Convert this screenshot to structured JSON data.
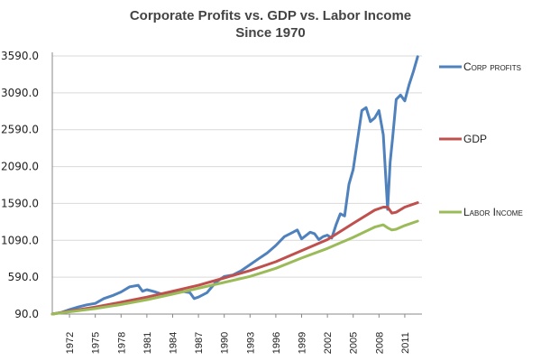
{
  "chart_data": {
    "type": "line",
    "title": "Corporate Profits vs. GDP vs. Labor Income",
    "subtitle": "Since 1970",
    "xlabel": "",
    "ylabel": "",
    "y_ticks": [
      "90.0",
      "590.0",
      "1090.0",
      "1590.0",
      "2090.0",
      "2590.0",
      "3090.0",
      "3590.0"
    ],
    "y_tick_values": [
      90,
      590,
      1090,
      1590,
      2090,
      2590,
      3090,
      3590
    ],
    "ylim": [
      90,
      3590
    ],
    "x_ticks": [
      "1972",
      "1975",
      "1978",
      "1981",
      "1984",
      "1987",
      "1990",
      "1993",
      "1996",
      "1999",
      "2002",
      "2005",
      "2008",
      "2011"
    ],
    "x_tick_values": [
      1972,
      1975,
      1978,
      1981,
      1984,
      1987,
      1990,
      1993,
      1996,
      1999,
      2002,
      2005,
      2008,
      2011
    ],
    "xlim": [
      1970,
      2013
    ],
    "grid": "horizontal",
    "legend_position": "right",
    "series": [
      {
        "name": "Corp profits",
        "color": "#4f81bd",
        "x": [
          1970,
          1971,
          1972,
          1973,
          1974,
          1975,
          1976,
          1977,
          1978,
          1979,
          1980,
          1980.5,
          1981,
          1982,
          1983,
          1984,
          1985,
          1986,
          1986.5,
          1987,
          1988,
          1989,
          1990,
          1991,
          1992,
          1993,
          1994,
          1995,
          1996,
          1997,
          1998,
          1998.5,
          1999,
          2000,
          2000.5,
          2001,
          2001.5,
          2002,
          2002.5,
          2003,
          2003.5,
          2004,
          2004.5,
          2005,
          2005.5,
          2006,
          2006.5,
          2007,
          2007.5,
          2008,
          2008.5,
          2009,
          2009.3,
          2009.6,
          2010,
          2010.5,
          2011,
          2011.5,
          2012,
          2012.5
        ],
        "values": [
          90,
          110,
          150,
          185,
          215,
          235,
          300,
          340,
          390,
          460,
          480,
          400,
          420,
          390,
          350,
          390,
          400,
          380,
          300,
          320,
          380,
          520,
          600,
          620,
          680,
          760,
          840,
          920,
          1020,
          1140,
          1200,
          1230,
          1110,
          1200,
          1180,
          1100,
          1140,
          1160,
          1120,
          1300,
          1450,
          1420,
          1850,
          2050,
          2450,
          2850,
          2890,
          2700,
          2750,
          2850,
          2520,
          1510,
          2150,
          2500,
          3000,
          3060,
          2980,
          3200,
          3380,
          3580
        ]
      },
      {
        "name": "GDP",
        "color": "#c0504d",
        "x": [
          1970,
          1972,
          1975,
          1978,
          1981,
          1984,
          1987,
          1990,
          1993,
          1996,
          1999,
          2002,
          2005,
          2007.5,
          2008.5,
          2009,
          2009.5,
          2010,
          2011,
          2012.5
        ],
        "values": [
          90,
          130,
          185,
          250,
          320,
          400,
          480,
          580,
          680,
          800,
          950,
          1100,
          1320,
          1500,
          1540,
          1540,
          1460,
          1470,
          1540,
          1600
        ]
      },
      {
        "name": "Labor Income",
        "color": "#9bbb59",
        "x": [
          1970,
          1972,
          1975,
          1978,
          1981,
          1984,
          1987,
          1990,
          1993,
          1996,
          1999,
          2002,
          2005,
          2007.5,
          2008.5,
          2009,
          2009.5,
          2010,
          2011,
          2012.5
        ],
        "values": [
          90,
          120,
          165,
          220,
          285,
          360,
          440,
          520,
          600,
          710,
          850,
          980,
          1130,
          1270,
          1300,
          1260,
          1230,
          1240,
          1290,
          1350
        ]
      }
    ]
  }
}
